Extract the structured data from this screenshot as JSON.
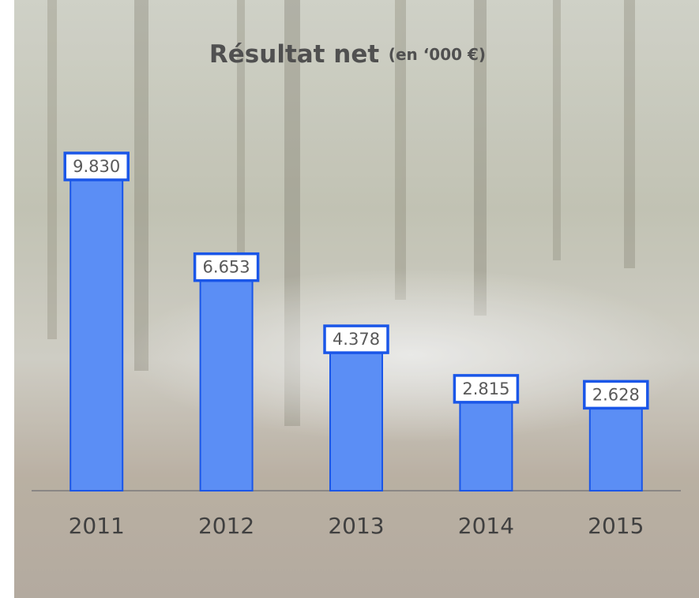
{
  "chart_data": {
    "type": "bar",
    "title": "Résultat net",
    "subtitle": "(en ‘000 €)",
    "categories": [
      "2011",
      "2012",
      "2013",
      "2014",
      "2015"
    ],
    "values": [
      9830,
      6653,
      4378,
      2815,
      2628
    ],
    "value_labels": [
      "9.830",
      "6.653",
      "4.378",
      "2.815",
      "2.628"
    ],
    "color": "#5b8ef5"
  }
}
